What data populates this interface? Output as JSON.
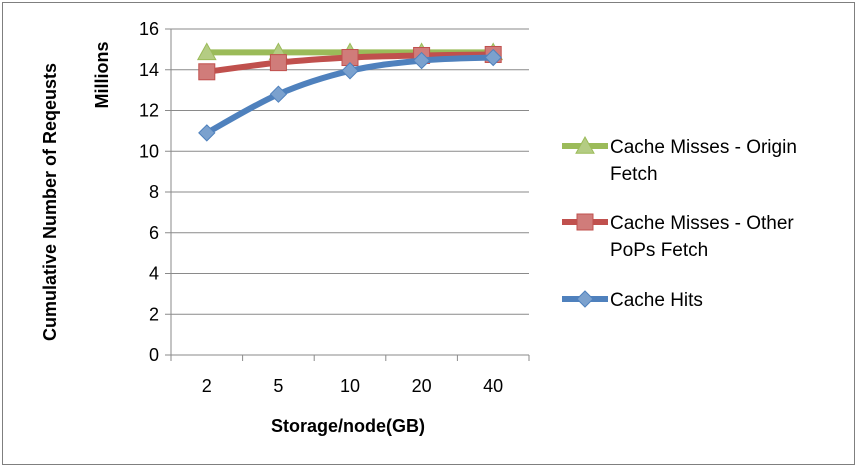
{
  "chart_data": {
    "type": "line",
    "categories": [
      "2",
      "5",
      "10",
      "20",
      "40"
    ],
    "xlabel": "Storage/node(GB)",
    "ylabel": "Cumulative Number of Reqeusts",
    "yunit": "Millions",
    "ylim": [
      0,
      16
    ],
    "yticks": [
      "0",
      "2",
      "4",
      "6",
      "8",
      "10",
      "12",
      "14",
      "16"
    ],
    "grid": "horizontal",
    "legend_position": "right",
    "series": [
      {
        "name_lines": [
          "Cache Misses - Origin",
          "Fetch"
        ],
        "color": "#9BBB59",
        "marker": "triangle",
        "values": [
          14.85,
          14.85,
          14.85,
          14.85,
          14.85
        ]
      },
      {
        "name_lines": [
          "Cache Misses  - Other",
          "PoPs Fetch"
        ],
        "color": "#C0504D",
        "marker": "square",
        "values": [
          13.9,
          14.35,
          14.6,
          14.7,
          14.75
        ]
      },
      {
        "name_lines": [
          "Cache Hits"
        ],
        "color": "#4F81BD",
        "marker": "diamond",
        "values": [
          10.9,
          12.8,
          13.95,
          14.45,
          14.6
        ]
      }
    ]
  }
}
